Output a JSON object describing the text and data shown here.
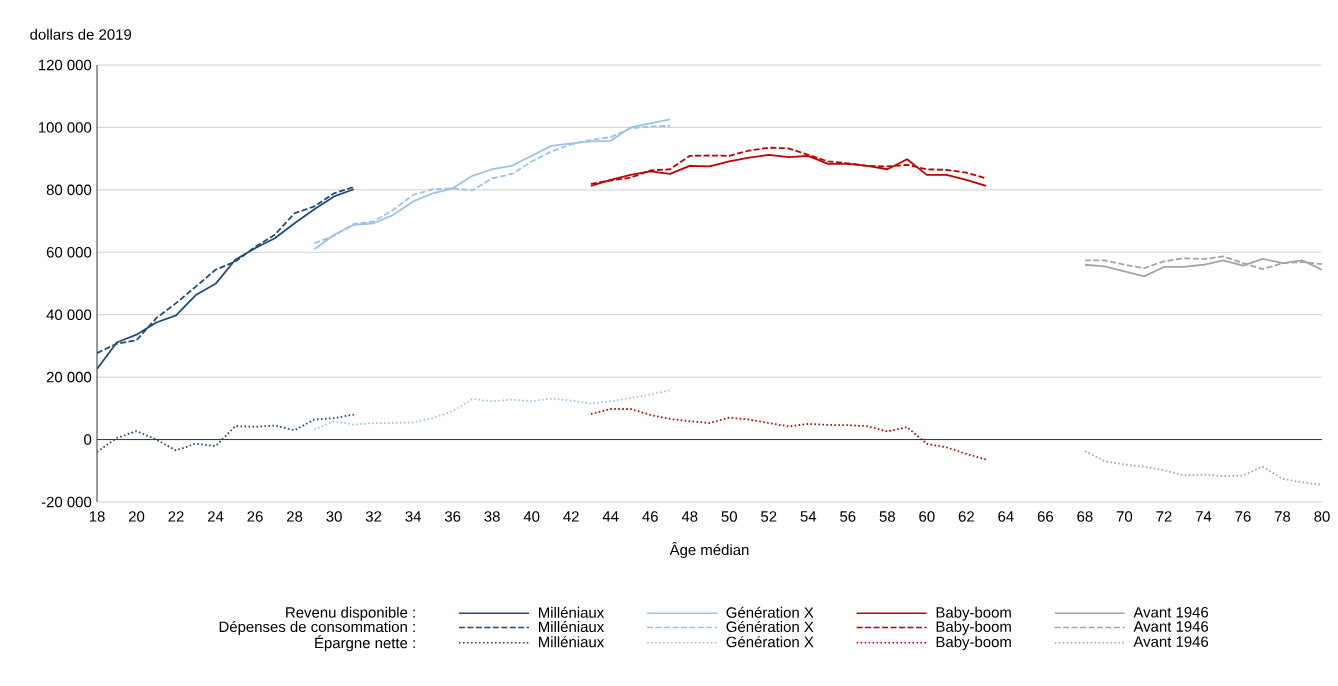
{
  "chart_data": {
    "type": "line",
    "ylabel": "dollars de 2019",
    "xlabel": "Âge médian",
    "xlim": [
      18,
      80
    ],
    "xticks": [
      18,
      20,
      22,
      24,
      26,
      28,
      30,
      32,
      34,
      36,
      38,
      40,
      42,
      44,
      46,
      48,
      50,
      52,
      54,
      56,
      58,
      60,
      62,
      64,
      66,
      68,
      70,
      72,
      74,
      76,
      78,
      80
    ],
    "ylim": [
      -20000,
      120000
    ],
    "yticks": [
      {
        "value": -20000,
        "label": "-20 000"
      },
      {
        "value": 0,
        "label": "0"
      },
      {
        "value": 20000,
        "label": "20 000"
      },
      {
        "value": 40000,
        "label": "40 000"
      },
      {
        "value": 60000,
        "label": "60 000"
      },
      {
        "value": 80000,
        "label": "80 000"
      },
      {
        "value": 100000,
        "label": "100 000"
      },
      {
        "value": 120000,
        "label": "120 000"
      }
    ],
    "grid": "y",
    "legend": "bottom",
    "marker": "none",
    "annotations": [
      "Revenu disponible :",
      "Dépenses de consommation :",
      "Épargne nette :"
    ],
    "series": [
      {
        "name": "Milléniaux",
        "color": "#1f4e79",
        "line_style": "solid",
        "x": [
          18,
          19,
          20,
          21,
          22,
          23,
          24,
          25,
          26,
          27,
          28,
          29,
          30,
          31
        ],
        "values": [
          22600,
          31100,
          33600,
          37500,
          39800,
          46300,
          49900,
          57600,
          61300,
          64500,
          69300,
          73800,
          77900,
          80200
        ]
      },
      {
        "name": "Génération X",
        "color": "#9dc3e6",
        "line_style": "solid",
        "x": [
          29,
          30,
          31,
          32,
          33,
          34,
          35,
          36,
          37,
          38,
          39,
          40,
          41,
          42,
          43,
          44,
          45,
          46,
          47
        ],
        "values": [
          61000,
          65600,
          68800,
          69300,
          72000,
          76300,
          78900,
          80500,
          84500,
          86600,
          87700,
          90900,
          94100,
          94900,
          95500,
          95700,
          100000,
          101300,
          102600
        ]
      },
      {
        "name": "Baby-boom",
        "color": "#c00000",
        "line_style": "solid",
        "x": [
          43,
          44,
          45,
          46,
          47,
          48,
          49,
          50,
          51,
          52,
          53,
          54,
          55,
          56,
          57,
          58,
          59,
          60,
          61,
          62,
          63
        ],
        "values": [
          81300,
          83200,
          84800,
          85900,
          85100,
          87700,
          87500,
          89100,
          90300,
          91200,
          90500,
          90900,
          88300,
          88300,
          87700,
          86600,
          89800,
          84800,
          84800,
          83200,
          81300
        ]
      },
      {
        "name": "Avant 1946",
        "color": "#a5a5a5",
        "line_style": "solid",
        "x": [
          68,
          69,
          70,
          71,
          72,
          73,
          74,
          75,
          76,
          77,
          78,
          79,
          80
        ],
        "values": [
          56000,
          55500,
          53900,
          52300,
          55300,
          55300,
          56000,
          57400,
          55700,
          57900,
          56500,
          57400,
          54400
        ]
      },
      {
        "name": "Milléniaux",
        "color": "#1f4e79",
        "line_style": "dashed",
        "x": [
          18,
          19,
          20,
          21,
          22,
          23,
          24,
          25,
          26,
          27,
          28,
          29,
          30,
          31
        ],
        "values": [
          27700,
          30700,
          31800,
          38900,
          43700,
          49000,
          54400,
          57000,
          61700,
          65600,
          72500,
          74700,
          78900,
          80900
        ]
      },
      {
        "name": "Génération X",
        "color": "#9dc3e6",
        "line_style": "dashed",
        "x": [
          29,
          30,
          31,
          32,
          33,
          34,
          35,
          36,
          37,
          38,
          39,
          40,
          41,
          42,
          43,
          44,
          45,
          46,
          47
        ],
        "values": [
          62900,
          65300,
          69100,
          69900,
          73600,
          78400,
          80200,
          80500,
          79800,
          83700,
          85100,
          89100,
          92300,
          94600,
          96000,
          96900,
          99700,
          100300,
          100500
        ]
      },
      {
        "name": "Baby-boom",
        "color": "#c00000",
        "line_style": "dashed",
        "x": [
          43,
          44,
          45,
          46,
          47,
          48,
          49,
          50,
          51,
          52,
          53,
          54,
          55,
          56,
          57,
          58,
          59,
          60,
          61,
          62,
          63
        ],
        "values": [
          81900,
          83000,
          83900,
          86200,
          86600,
          90900,
          91000,
          90900,
          92600,
          93500,
          93300,
          91200,
          89100,
          88500,
          87700,
          87500,
          88000,
          86600,
          86400,
          85500,
          83700
        ]
      },
      {
        "name": "Avant 1946",
        "color": "#a5a5a5",
        "line_style": "dashed",
        "x": [
          68,
          69,
          70,
          71,
          72,
          73,
          74,
          75,
          76,
          77,
          78,
          79,
          80
        ],
        "values": [
          57400,
          57400,
          56000,
          54900,
          57100,
          58100,
          57800,
          58700,
          56500,
          54600,
          56500,
          56900,
          56200
        ]
      },
      {
        "name": "Milléniaux",
        "color": "#1f4e79",
        "line_style": "dotted",
        "x": [
          18,
          19,
          20,
          21,
          22,
          23,
          24,
          25,
          26,
          27,
          28,
          29,
          30,
          31
        ],
        "values": [
          -4000,
          500,
          2700,
          0,
          -3500,
          -1300,
          -2100,
          4300,
          4100,
          4500,
          3000,
          6400,
          6900,
          8000
        ]
      },
      {
        "name": "Génération X",
        "color": "#9dc3e6",
        "line_style": "dotted",
        "x": [
          29,
          30,
          31,
          32,
          33,
          34,
          35,
          36,
          37,
          38,
          39,
          40,
          41,
          42,
          43,
          44,
          45,
          46,
          47
        ],
        "values": [
          3200,
          5900,
          4800,
          5300,
          5300,
          5500,
          6900,
          9100,
          13000,
          12300,
          12800,
          12300,
          13100,
          12500,
          11500,
          12300,
          13300,
          14400,
          15800
        ]
      },
      {
        "name": "Baby-boom",
        "color": "#c00000",
        "line_style": "dotted",
        "x": [
          43,
          44,
          45,
          46,
          47,
          48,
          49,
          50,
          51,
          52,
          53,
          54,
          55,
          56,
          57,
          58,
          59,
          60,
          61,
          62,
          63
        ],
        "values": [
          8200,
          9800,
          9800,
          7900,
          6600,
          5900,
          5300,
          7000,
          6400,
          5300,
          4200,
          5000,
          4700,
          4600,
          4300,
          2600,
          4000,
          -1400,
          -2500,
          -4600,
          -6400
        ]
      },
      {
        "name": "Avant 1946",
        "color": "#a5a5a5",
        "line_style": "dotted",
        "x": [
          68,
          69,
          70,
          71,
          72,
          73,
          74,
          75,
          76,
          77,
          78,
          79,
          80
        ],
        "values": [
          -3700,
          -6900,
          -8000,
          -8700,
          -9800,
          -11500,
          -11200,
          -11700,
          -11500,
          -8700,
          -12600,
          -13700,
          -14500
        ]
      }
    ]
  }
}
